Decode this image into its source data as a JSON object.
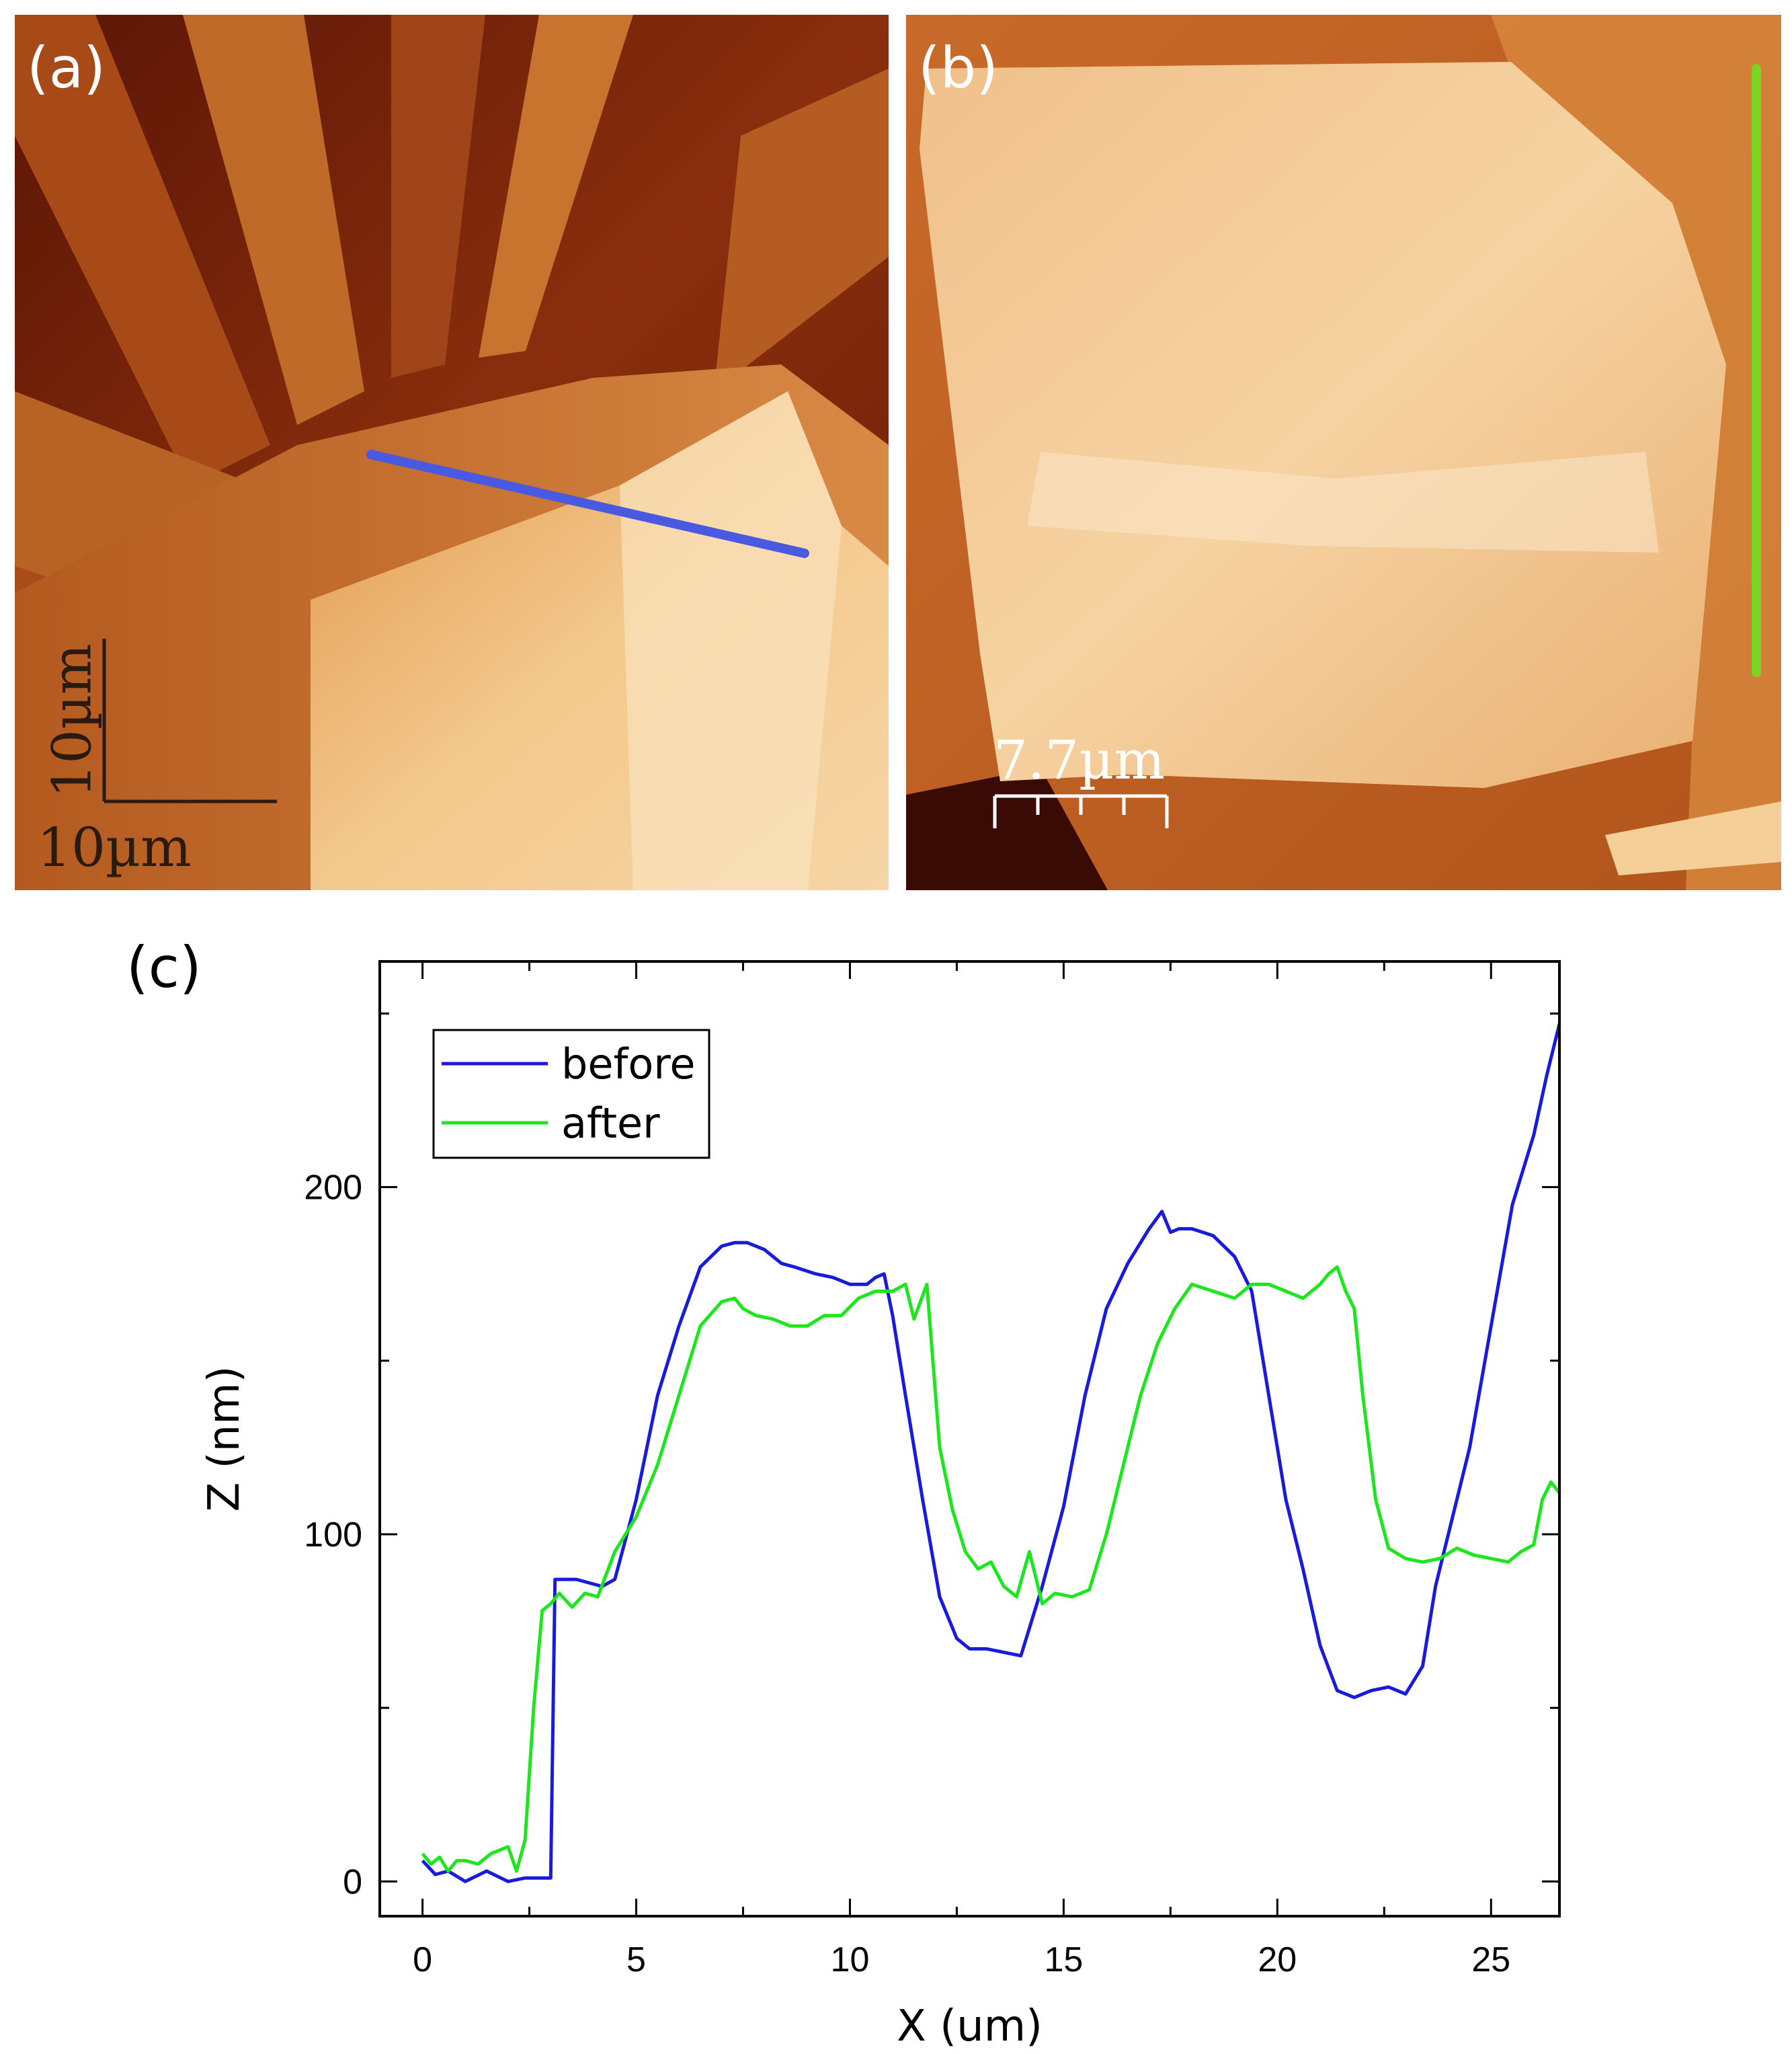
{
  "panels": {
    "a": {
      "label": "(a)",
      "scale_v": "10µm",
      "scale_h": "10µm"
    },
    "b": {
      "label": "(b)",
      "scale": "7.7µm"
    },
    "c": {
      "label": "(c)"
    }
  },
  "colors": {
    "before": "#1a1adc",
    "after": "#1ee61e",
    "afm_dark": "#4a0e05",
    "afm_mid": "#c46a28",
    "afm_light": "#f8dcb0",
    "profile_line_a": "#4a5ae0",
    "profile_line_b": "#7ed321"
  },
  "chart_data": {
    "type": "line",
    "title": "",
    "xlabel": "X (um)",
    "ylabel": "Z (nm)",
    "xlim": [
      -1,
      26.6
    ],
    "ylim": [
      -10,
      265
    ],
    "xticks": [
      0,
      5,
      10,
      15,
      20,
      25
    ],
    "yticks": [
      0,
      100,
      200
    ],
    "legend": {
      "position": "top-left"
    },
    "series": [
      {
        "name": "before",
        "color": "#1a1adc",
        "x": [
          0,
          0.3,
          0.6,
          1.0,
          1.5,
          2.0,
          2.4,
          3.0,
          3.1,
          3.6,
          4.2,
          4.5,
          5.0,
          5.5,
          6.0,
          6.5,
          7.0,
          7.3,
          7.6,
          8.0,
          8.4,
          8.7,
          9.2,
          9.6,
          10.0,
          10.4,
          10.6,
          10.8,
          11.0,
          11.3,
          11.7,
          12.1,
          12.5,
          12.8,
          13.2,
          13.6,
          14.0,
          14.5,
          15.0,
          15.5,
          16.0,
          16.5,
          17.0,
          17.3,
          17.5,
          17.7,
          18.0,
          18.5,
          19.0,
          19.4,
          19.8,
          20.2,
          20.6,
          21.0,
          21.4,
          21.8,
          22.2,
          22.6,
          23.0,
          23.4,
          23.7,
          24.0,
          24.5,
          25.0,
          25.5,
          26.0,
          26.3,
          26.6
        ],
        "y": [
          6,
          2,
          3,
          0,
          3,
          0,
          1,
          1,
          87,
          87,
          85,
          87,
          110,
          140,
          160,
          177,
          183,
          184,
          184,
          182,
          178,
          177,
          175,
          174,
          172,
          172,
          174,
          175,
          163,
          140,
          110,
          82,
          70,
          67,
          67,
          66,
          65,
          85,
          108,
          140,
          165,
          178,
          188,
          193,
          187,
          188,
          188,
          186,
          180,
          170,
          140,
          110,
          90,
          68,
          55,
          53,
          55,
          56,
          54,
          62,
          85,
          100,
          125,
          160,
          195,
          215,
          232,
          247
        ]
      },
      {
        "name": "after",
        "color": "#1ee61e",
        "x": [
          0,
          0.2,
          0.4,
          0.6,
          0.8,
          1.0,
          1.3,
          1.6,
          2.0,
          2.2,
          2.4,
          2.6,
          2.8,
          3.0,
          3.2,
          3.5,
          3.8,
          4.1,
          4.5,
          5.0,
          5.5,
          6.0,
          6.5,
          7.0,
          7.3,
          7.5,
          7.8,
          8.2,
          8.6,
          9.0,
          9.4,
          9.8,
          10.2,
          10.6,
          11.0,
          11.3,
          11.5,
          11.8,
          12.1,
          12.4,
          12.7,
          13.0,
          13.3,
          13.6,
          13.9,
          14.2,
          14.5,
          14.8,
          15.2,
          15.6,
          16.0,
          16.4,
          16.8,
          17.2,
          17.6,
          18.0,
          18.5,
          19.0,
          19.4,
          19.8,
          20.2,
          20.6,
          21.0,
          21.2,
          21.4,
          21.6,
          21.8,
          22.0,
          22.3,
          22.6,
          23.0,
          23.4,
          23.8,
          24.2,
          24.6,
          25.0,
          25.4,
          25.7,
          26.0,
          26.2,
          26.4,
          26.6
        ],
        "y": [
          8,
          5,
          7,
          3,
          6,
          6,
          5,
          8,
          10,
          3,
          12,
          50,
          78,
          80,
          83,
          79,
          83,
          82,
          95,
          105,
          120,
          140,
          160,
          167,
          168,
          165,
          163,
          162,
          160,
          160,
          163,
          163,
          168,
          170,
          170,
          172,
          162,
          172,
          125,
          107,
          95,
          90,
          92,
          85,
          82,
          95,
          80,
          83,
          82,
          84,
          100,
          120,
          140,
          155,
          165,
          172,
          170,
          168,
          172,
          172,
          170,
          168,
          172,
          175,
          177,
          170,
          165,
          140,
          110,
          96,
          93,
          92,
          93,
          96,
          94,
          93,
          92,
          95,
          97,
          110,
          115,
          112
        ]
      }
    ]
  }
}
